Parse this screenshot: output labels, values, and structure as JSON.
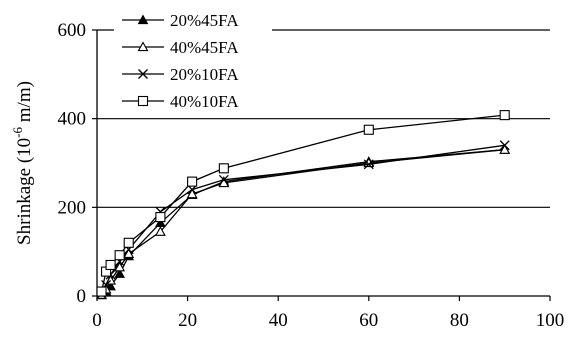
{
  "chart_data": {
    "type": "line",
    "xlim": [
      0,
      100
    ],
    "ylim": [
      0,
      600
    ],
    "xticks": [
      0,
      20,
      40,
      60,
      80,
      100
    ],
    "yticks": [
      0,
      200,
      400,
      600
    ],
    "gridlines_y": [
      200,
      400,
      600
    ],
    "xlabel": "",
    "ylabel": {
      "prefix": "Shrinkage (10",
      "exponent": "-6",
      "suffix": " m/m)"
    },
    "legend_position": "top-left",
    "series": [
      {
        "name": "20%45FA",
        "marker": "filled-triangle",
        "x": [
          1,
          2,
          3,
          5,
          7,
          14,
          21,
          28,
          60,
          90
        ],
        "y": [
          2,
          10,
          22,
          50,
          90,
          165,
          228,
          258,
          303,
          330
        ]
      },
      {
        "name": "40%45FA",
        "marker": "open-triangle",
        "x": [
          1,
          2,
          3,
          5,
          7,
          14,
          21,
          28,
          60,
          90
        ],
        "y": [
          3,
          15,
          35,
          65,
          95,
          145,
          230,
          255,
          300,
          330
        ]
      },
      {
        "name": "20%10FA",
        "marker": "x",
        "x": [
          1,
          2,
          3,
          5,
          7,
          14,
          21,
          28,
          60,
          90
        ],
        "y": [
          5,
          25,
          48,
          78,
          105,
          190,
          240,
          262,
          297,
          340
        ]
      },
      {
        "name": "40%10FA",
        "marker": "open-square",
        "x": [
          1,
          2,
          3,
          5,
          7,
          14,
          21,
          28,
          60,
          90
        ],
        "y": [
          10,
          55,
          70,
          92,
          120,
          178,
          258,
          288,
          375,
          408
        ]
      }
    ]
  }
}
